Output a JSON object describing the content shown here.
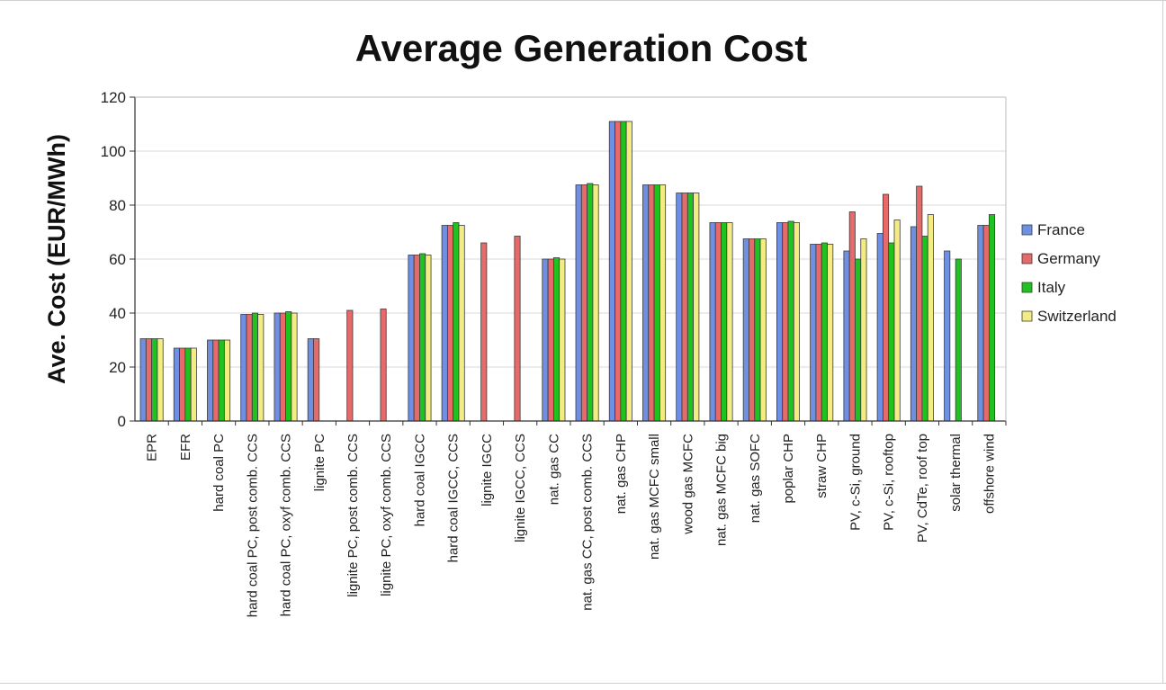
{
  "chart_data": {
    "type": "bar",
    "title": "Average Generation Cost",
    "xlabel": "",
    "ylabel": "Ave. Cost (EUR/MWh)",
    "ylim": [
      0,
      120
    ],
    "yticks": [
      0,
      20,
      40,
      60,
      80,
      100,
      120
    ],
    "grid": true,
    "legend": "right",
    "categories": [
      "EPR",
      "EFR",
      "hard coal PC",
      "hard coal PC, post comb. CCS",
      "hard coal PC, oxyf comb. CCS",
      "lignite PC",
      "lignite PC, post comb. CCS",
      "lignite PC, oxyf comb. CCS",
      "hard coal IGCC",
      "hard coal IGCC, CCS",
      "lignite IGCC",
      "lignite IGCC, CCS",
      "nat. gas CC",
      "nat. gas CC, post comb. CCS",
      "nat. gas CHP",
      "nat. gas MCFC small",
      "wood gas MCFC",
      "nat. gas MCFC big",
      "nat. gas SOFC",
      "poplar CHP",
      "straw CHP",
      "PV, c-Si, ground",
      "PV, c-Si, rooftop",
      "PV, CdTe, roof top",
      "solar thermal",
      "offshore wind"
    ],
    "series": [
      {
        "name": "France",
        "color": "#6f8fe3",
        "values": [
          30.5,
          27,
          30,
          39.5,
          40,
          30.5,
          null,
          null,
          61.5,
          72.5,
          null,
          null,
          60,
          87.5,
          111,
          87.5,
          84.5,
          73.5,
          67.5,
          73.5,
          65.5,
          63,
          69.5,
          72,
          63,
          72.5
        ]
      },
      {
        "name": "Germany",
        "color": "#e66a6a",
        "values": [
          30.5,
          27,
          30,
          39.5,
          40,
          30.5,
          41,
          41.5,
          61.5,
          72.5,
          66,
          68.5,
          60,
          87.5,
          111,
          87.5,
          84.5,
          73.5,
          67.5,
          73.5,
          65.5,
          77.5,
          84,
          87,
          null,
          72.5
        ]
      },
      {
        "name": "Italy",
        "color": "#1fc21f",
        "values": [
          30.5,
          27,
          30,
          40,
          40.5,
          null,
          null,
          null,
          62,
          73.5,
          null,
          null,
          60.5,
          88,
          111,
          87.5,
          84.5,
          73.5,
          67.5,
          74,
          66,
          60,
          66,
          68.5,
          60,
          76.5
        ]
      },
      {
        "name": "Switzerland",
        "color": "#f2ec82",
        "values": [
          30.5,
          27,
          30,
          39.5,
          40,
          null,
          null,
          null,
          61.5,
          72.5,
          null,
          null,
          60,
          87.5,
          111,
          87.5,
          84.5,
          73.5,
          67.5,
          73.5,
          65.5,
          67.5,
          74.5,
          76.5,
          null,
          null
        ]
      }
    ]
  }
}
